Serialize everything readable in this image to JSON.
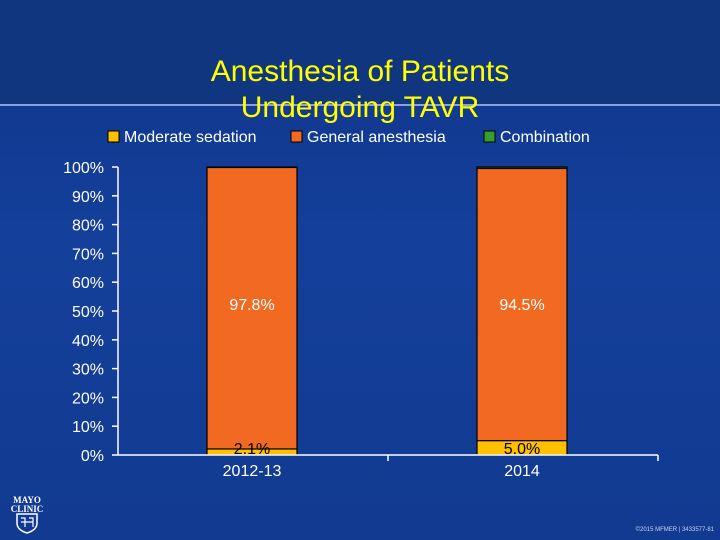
{
  "slide": {
    "title_line1": "Anesthesia of Patients",
    "title_line2": "Undergoing TAVR",
    "footer": "©2015 MFMER | 3433577-81",
    "logo_line1": "MAYO",
    "logo_line2": "CLINIC"
  },
  "colors": {
    "background": "#14409b",
    "title": "#ffff00",
    "moderate_sedation": "#ffc000",
    "general_anesthesia": "#f26a21",
    "combination": "#33a02c"
  },
  "chart_data": {
    "type": "bar",
    "stacked": true,
    "title": "Anesthesia of Patients Undergoing TAVR",
    "categories": [
      "2012-13",
      "2014"
    ],
    "series": [
      {
        "name": "Moderate sedation",
        "values": [
          2.1,
          5.0
        ],
        "labels": [
          "2.1%",
          "5.0%"
        ]
      },
      {
        "name": "General anesthesia",
        "values": [
          97.8,
          94.5
        ],
        "labels": [
          "97.8%",
          "94.5%"
        ]
      },
      {
        "name": "Combination",
        "values": [
          0.1,
          0.5
        ],
        "labels": [
          "",
          ""
        ]
      }
    ],
    "yticks": [
      "0%",
      "10%",
      "20%",
      "30%",
      "40%",
      "50%",
      "60%",
      "70%",
      "80%",
      "90%",
      "100%"
    ],
    "ylim": [
      0,
      100
    ],
    "legend_position": "top",
    "grid": false
  }
}
